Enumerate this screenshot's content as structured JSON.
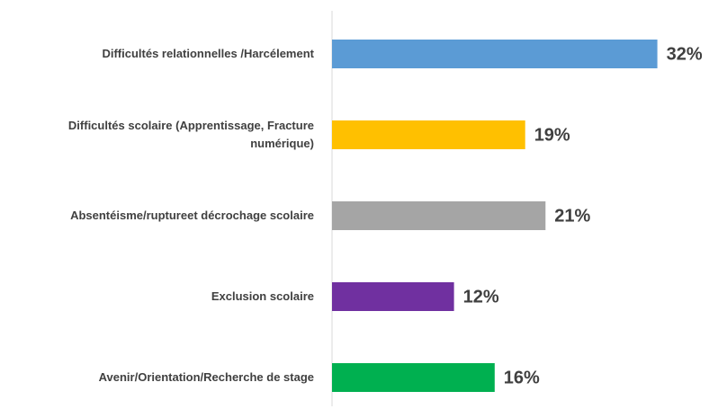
{
  "chart_data": {
    "type": "bar",
    "orientation": "horizontal",
    "categories": [
      "Difficultés relationnelles /Harcélement",
      "Difficultés scolaire (Apprentissage, Fracture numérique)",
      "Absentéisme/ruptureet décrochage scolaire",
      "Exclusion scolaire",
      "Avenir/Orientation/Recherche de stage"
    ],
    "values": [
      32,
      19,
      21,
      12,
      16
    ],
    "value_labels": [
      "32%",
      "19%",
      "21%",
      "12%",
      "16%"
    ],
    "colors": [
      "#5b9bd5",
      "#ffc000",
      "#a5a5a5",
      "#7030a0",
      "#00b050"
    ]
  }
}
